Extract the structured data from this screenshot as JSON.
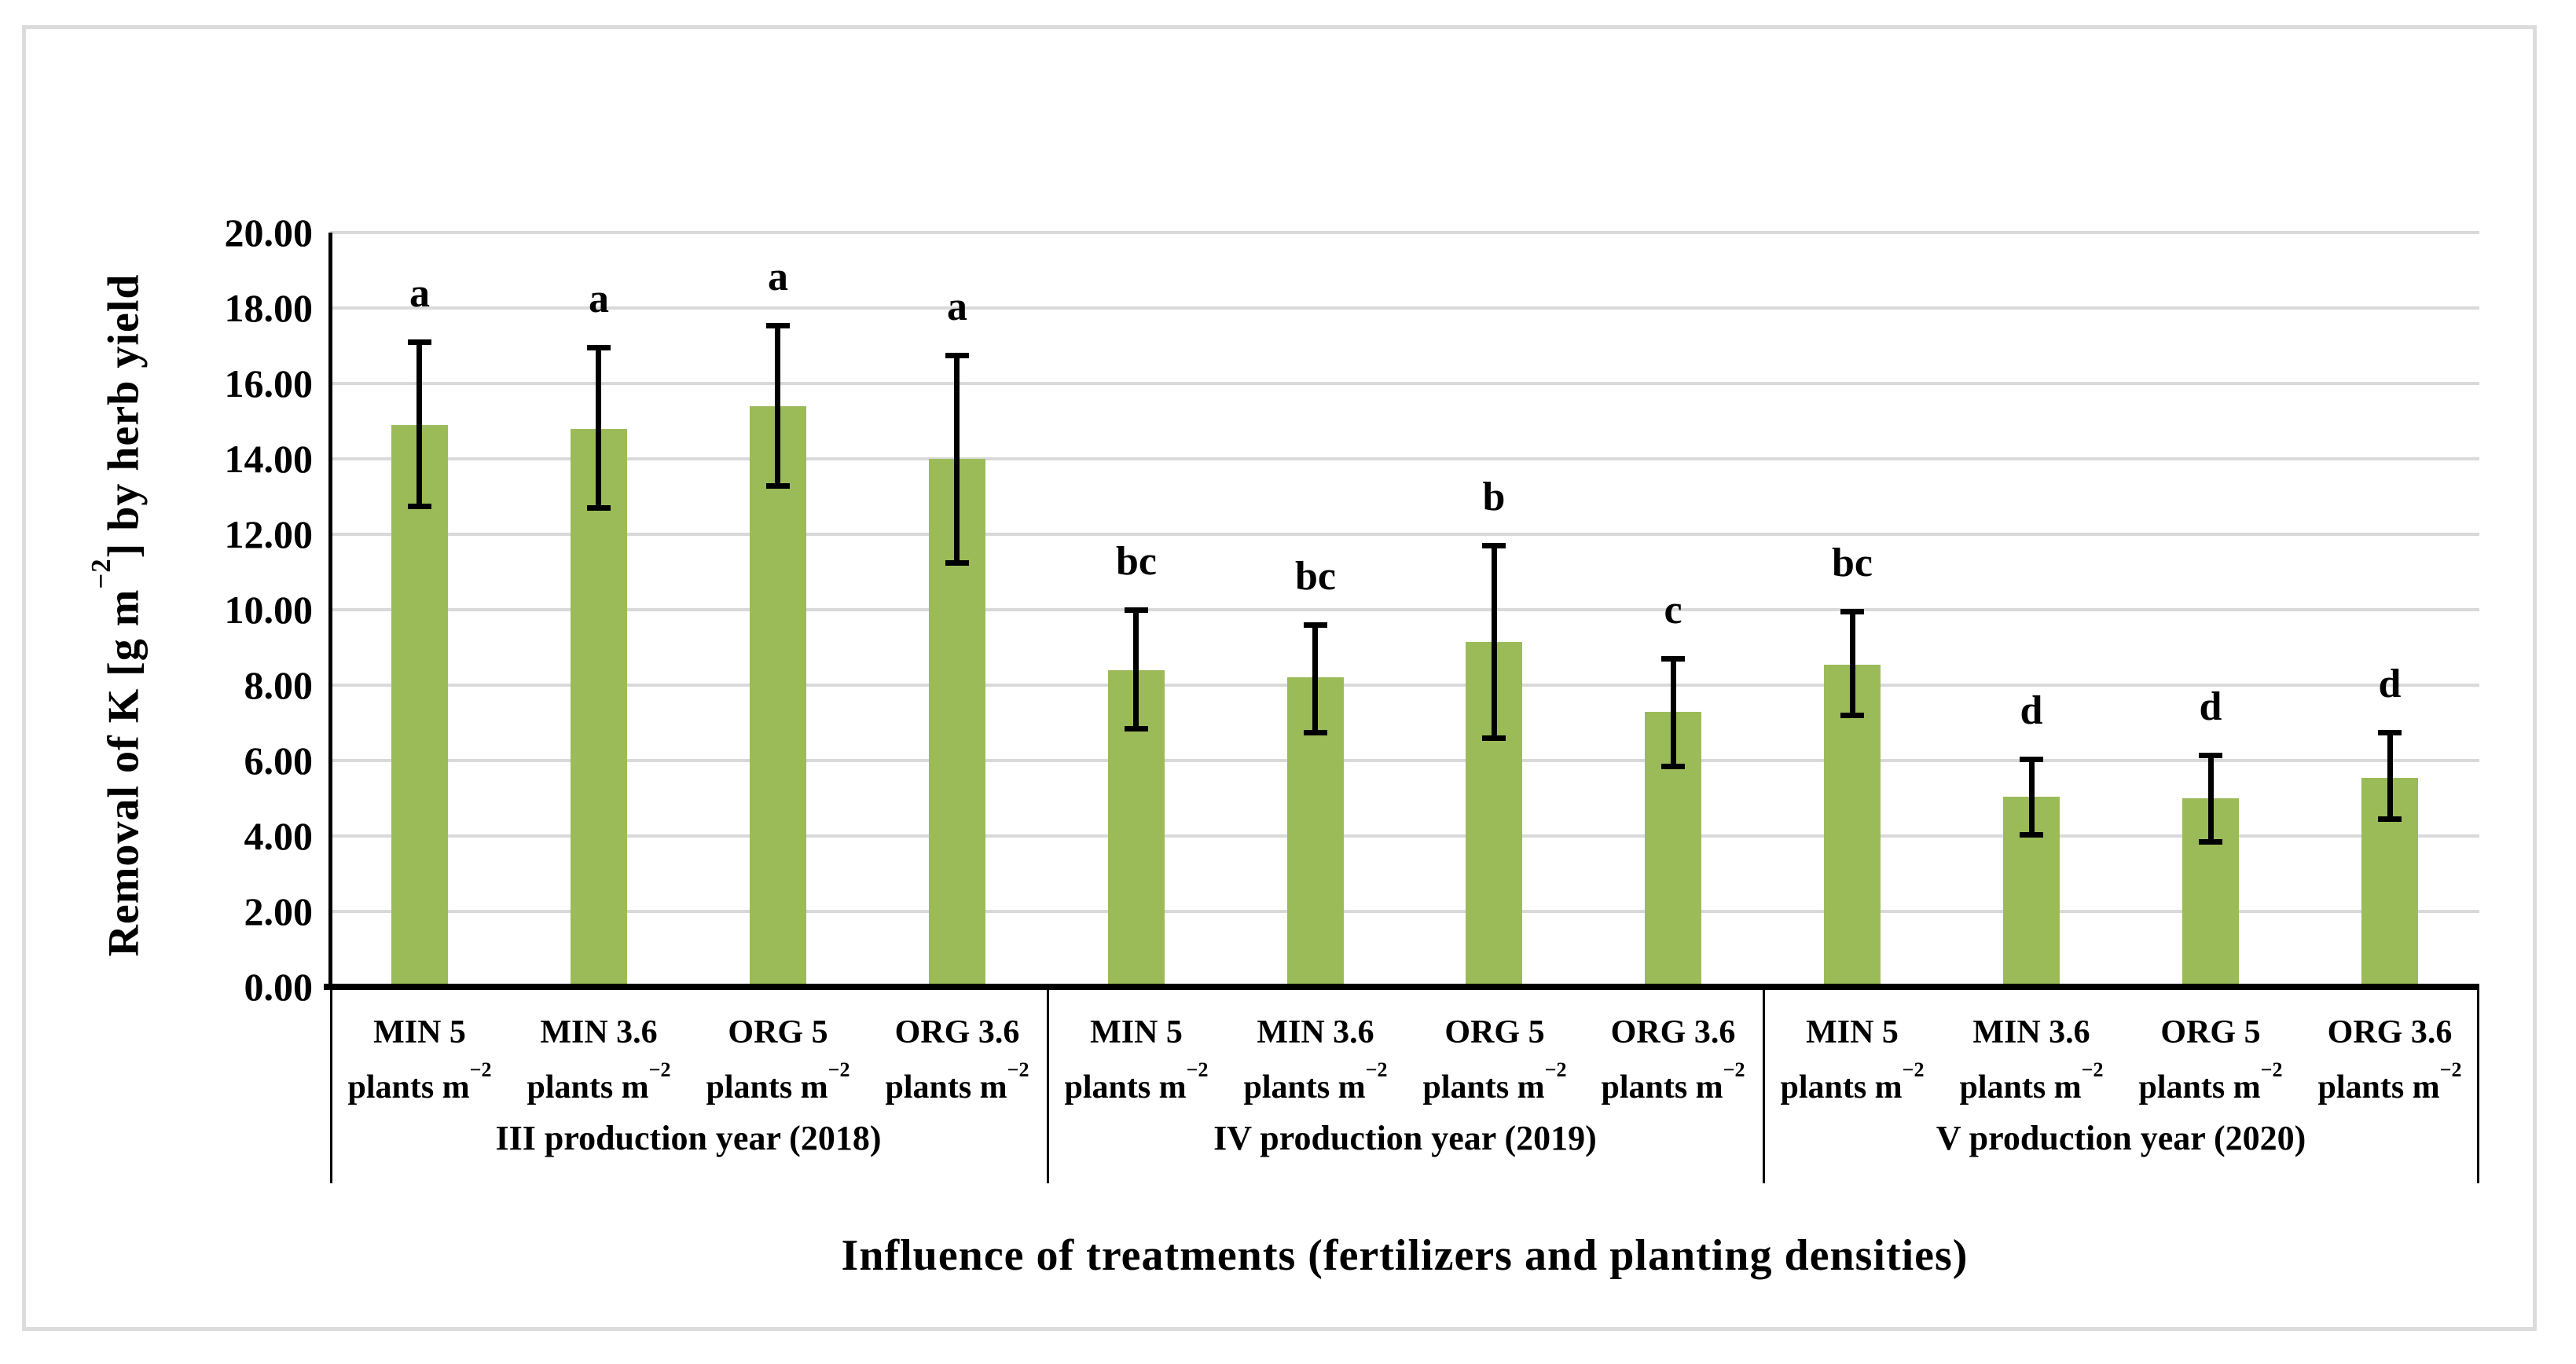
{
  "chart_data": {
    "type": "bar",
    "title": "",
    "xlabel": "Influence of treatments (fertilizers and planting densities)",
    "ylabel": {
      "pre": "Removal of K [g m",
      "sup": "−2",
      "post": "] by herb yield"
    },
    "ylim": [
      0,
      20
    ],
    "ytick_step": 2,
    "ytick_labels": [
      "0.00",
      "2.00",
      "4.00",
      "6.00",
      "8.00",
      "10.00",
      "12.00",
      "14.00",
      "16.00",
      "18.00",
      "20.00"
    ],
    "grid": true,
    "legend": "none",
    "bar_color": "#9BBB59",
    "grid_color": "#D9D9D9",
    "axis_color": "#000000",
    "error_bar_color": "#000000",
    "category_unit": {
      "base": "plants m",
      "sup": "−2"
    },
    "groups": [
      {
        "label": "III production year (2018)",
        "bars": [
          {
            "name": "MIN 5",
            "value": 14.9,
            "err_low": 12.75,
            "err_high": 17.1,
            "sig_letter": "a"
          },
          {
            "name": "MIN 3.6",
            "value": 14.8,
            "err_low": 12.7,
            "err_high": 16.95,
            "sig_letter": "a"
          },
          {
            "name": "ORG 5",
            "value": 15.4,
            "err_low": 13.3,
            "err_high": 17.55,
            "sig_letter": "a"
          },
          {
            "name": "ORG 3.6",
            "value": 14.0,
            "err_low": 11.25,
            "err_high": 16.75,
            "sig_letter": "a"
          }
        ]
      },
      {
        "label": "IV production year (2019)",
        "bars": [
          {
            "name": "MIN 5",
            "value": 8.4,
            "err_low": 6.85,
            "err_high": 10.0,
            "sig_letter": "bc"
          },
          {
            "name": "MIN 3.6",
            "value": 8.2,
            "err_low": 6.75,
            "err_high": 9.6,
            "sig_letter": "bc"
          },
          {
            "name": "ORG 5",
            "value": 9.15,
            "err_low": 6.6,
            "err_high": 11.7,
            "sig_letter": "b"
          },
          {
            "name": "ORG 3.6",
            "value": 7.3,
            "err_low": 5.85,
            "err_high": 8.7,
            "sig_letter": "c"
          }
        ]
      },
      {
        "label": "V production year (2020)",
        "bars": [
          {
            "name": "MIN 5",
            "value": 8.55,
            "err_low": 7.2,
            "err_high": 9.95,
            "sig_letter": "bc"
          },
          {
            "name": "MIN 3.6",
            "value": 5.05,
            "err_low": 4.05,
            "err_high": 6.05,
            "sig_letter": "d"
          },
          {
            "name": "ORG 5",
            "value": 5.0,
            "err_low": 3.85,
            "err_high": 6.15,
            "sig_letter": "d"
          },
          {
            "name": "ORG 3.6",
            "value": 5.55,
            "err_low": 4.45,
            "err_high": 6.75,
            "sig_letter": "d"
          }
        ]
      }
    ]
  }
}
